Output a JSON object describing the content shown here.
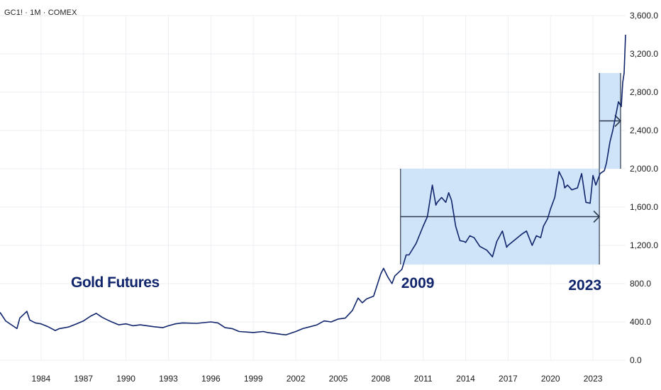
{
  "symbol_line": "GC1! · 1M · COMEX",
  "colors": {
    "line": "#10256b",
    "box_fill": "#cfe3f9",
    "grid": "#eceff3",
    "tick": "#1a1a1a",
    "arrow": "#2e3a4d"
  },
  "chart_data": {
    "type": "line",
    "title": "Gold Futures",
    "xlabel": "",
    "ylabel": "",
    "xlim": [
      1981.1,
      2025.3
    ],
    "ylim": [
      0,
      3600
    ],
    "grid": true,
    "y_axis_side": "right",
    "x_ticks": [
      1984,
      1987,
      1990,
      1993,
      1996,
      1999,
      2002,
      2005,
      2008,
      2011,
      2014,
      2017,
      2020,
      2023
    ],
    "x_tick_labels": [
      "1984",
      "1987",
      "1990",
      "1993",
      "1996",
      "1999",
      "2002",
      "2005",
      "2008",
      "2011",
      "2014",
      "2017",
      "2020",
      "2023"
    ],
    "y_ticks": [
      0,
      400,
      800,
      1200,
      1600,
      2000,
      2400,
      2800,
      3200,
      3600
    ],
    "y_tick_labels": [
      "0.0",
      "400.0",
      "800.0",
      "1,200.0",
      "1,600.0",
      "2,000.0",
      "2,400.0",
      "2,800.0",
      "3,200.0",
      "3,600.0"
    ],
    "series": [
      {
        "x": [
          1981.1,
          1981.5,
          1982.0,
          1982.3,
          1982.5,
          1983.0,
          1983.2,
          1983.6,
          1984.0,
          1984.5,
          1985.0,
          1985.3,
          1985.7,
          1986.0,
          1986.5,
          1987.0,
          1987.5,
          1987.9,
          1988.3,
          1988.7,
          1989.0,
          1989.5,
          1990.0,
          1990.5,
          1991.0,
          1991.5,
          1992.0,
          1992.6,
          1993.0,
          1993.5,
          1994.0,
          1995.0,
          1996.0,
          1996.5,
          1997.0,
          1997.5,
          1998.0,
          1999.0,
          1999.7,
          2000.0,
          2000.5,
          2001.0,
          2001.3,
          2002.0,
          2002.5,
          2003.0,
          2003.5,
          2004.0,
          2004.5,
          2005.0,
          2005.5,
          2006.0,
          2006.4,
          2006.7,
          2007.0,
          2007.5,
          2008.0,
          2008.2,
          2008.5,
          2008.8,
          2009.0,
          2009.5,
          2009.8,
          2010.0,
          2010.5,
          2011.0,
          2011.3,
          2011.65,
          2011.9,
          2012.0,
          2012.3,
          2012.6,
          2012.8,
          2013.0,
          2013.3,
          2013.6,
          2013.9,
          2014.0,
          2014.3,
          2014.6,
          2015.0,
          2015.5,
          2015.9,
          2016.2,
          2016.6,
          2016.9,
          2017.0,
          2017.5,
          2018.0,
          2018.3,
          2018.7,
          2019.0,
          2019.3,
          2019.5,
          2019.8,
          2020.0,
          2020.3,
          2020.6,
          2020.9,
          2021.0,
          2021.2,
          2021.5,
          2021.9,
          2022.2,
          2022.5,
          2022.8,
          2023.0,
          2023.2,
          2023.5,
          2023.8,
          2023.95,
          2024.2,
          2024.4,
          2024.6,
          2024.8,
          2025.0,
          2025.1,
          2025.2,
          2025.3
        ],
        "y": [
          500,
          410,
          360,
          330,
          440,
          510,
          420,
          390,
          380,
          350,
          310,
          330,
          340,
          350,
          380,
          410,
          460,
          490,
          450,
          420,
          400,
          370,
          380,
          360,
          370,
          360,
          350,
          340,
          360,
          380,
          390,
          385,
          400,
          390,
          340,
          330,
          300,
          290,
          300,
          290,
          280,
          270,
          265,
          300,
          330,
          350,
          370,
          410,
          400,
          430,
          440,
          520,
          650,
          600,
          640,
          670,
          900,
          960,
          870,
          800,
          880,
          950,
          1100,
          1100,
          1220,
          1400,
          1500,
          1830,
          1620,
          1650,
          1700,
          1650,
          1750,
          1670,
          1400,
          1250,
          1240,
          1230,
          1300,
          1280,
          1190,
          1150,
          1080,
          1240,
          1350,
          1180,
          1200,
          1260,
          1320,
          1350,
          1200,
          1300,
          1280,
          1400,
          1480,
          1580,
          1700,
          1970,
          1880,
          1800,
          1830,
          1780,
          1800,
          1950,
          1650,
          1640,
          1930,
          1830,
          1950,
          1980,
          2060,
          2280,
          2400,
          2550,
          2700,
          2650,
          2900,
          3000,
          3400
        ]
      }
    ],
    "annotations": [
      {
        "text": "Gold Futures"
      },
      {
        "text": "2009",
        "box_x": [
          2009.4,
          2023.45
        ],
        "box_y": [
          1000,
          2000
        ]
      },
      {
        "text": "2023",
        "box_x": [
          2023.45,
          2024.95
        ],
        "box_y": [
          2000,
          3000
        ]
      }
    ]
  }
}
